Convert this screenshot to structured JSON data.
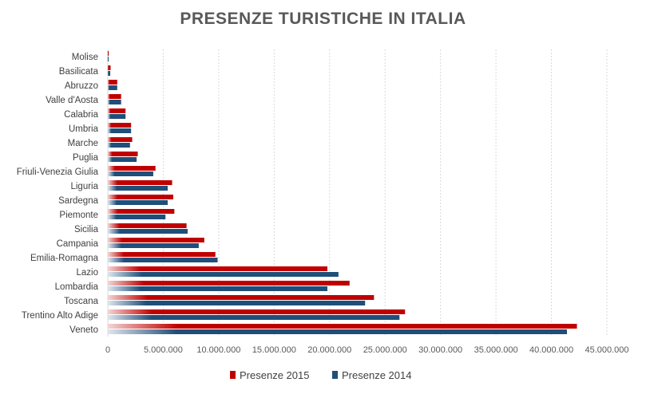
{
  "chart_data": {
    "type": "bar",
    "orientation": "horizontal",
    "title": "PRESENZE TURISTICHE IN ITALIA",
    "categories": [
      "Molise",
      "Basilicata",
      "Abruzzo",
      "Valle d'Aosta",
      "Calabria",
      "Umbria",
      "Marche",
      "Puglia",
      "Friuli-Venezia Giulia",
      "Liguria",
      "Sardegna",
      "Piemonte",
      "Sicilia",
      "Campania",
      "Emilia-Romagna",
      "Lazio",
      "Lombardia",
      "Toscana",
      "Trentino Alto Adige",
      "Veneto"
    ],
    "series": [
      {
        "name": "Presenze 2015",
        "color": "#C00000",
        "values": [
          80000,
          250000,
          850000,
          1200000,
          1600000,
          2100000,
          2200000,
          2700000,
          4300000,
          5800000,
          5900000,
          6000000,
          7100000,
          8700000,
          9700000,
          19800000,
          21800000,
          24000000,
          26800000,
          42300000
        ]
      },
      {
        "name": "Presenze 2014",
        "color": "#1F4E79",
        "values": [
          70000,
          220000,
          850000,
          1200000,
          1600000,
          2100000,
          2000000,
          2600000,
          4100000,
          5400000,
          5400000,
          5200000,
          7200000,
          8200000,
          9900000,
          20800000,
          19800000,
          23200000,
          26300000,
          41400000
        ]
      }
    ],
    "xlim": [
      0,
      45000000
    ],
    "xticks": [
      0,
      5000000,
      10000000,
      15000000,
      20000000,
      25000000,
      30000000,
      35000000,
      40000000,
      45000000
    ],
    "xtick_labels": [
      "0",
      "5.000.000",
      "10.000.000",
      "15.000.000",
      "20.000.000",
      "25.000.000",
      "30.000.000",
      "35.000.000",
      "40.000.000",
      "45.000.000"
    ],
    "grid": true,
    "legend_position": "bottom"
  }
}
